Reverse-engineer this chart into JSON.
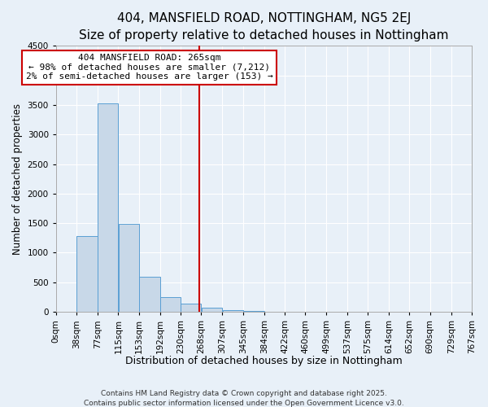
{
  "title": "404, MANSFIELD ROAD, NOTTINGHAM, NG5 2EJ",
  "subtitle": "Size of property relative to detached houses in Nottingham",
  "xlabel": "Distribution of detached houses by size in Nottingham",
  "ylabel": "Number of detached properties",
  "bin_edges": [
    0,
    38,
    77,
    115,
    153,
    192,
    230,
    268,
    307,
    345,
    384,
    422,
    460,
    499,
    537,
    575,
    614,
    652,
    690,
    729,
    767
  ],
  "bar_heights": [
    0,
    1280,
    3530,
    1490,
    600,
    245,
    145,
    75,
    30,
    10,
    5,
    0,
    0,
    0,
    0,
    0,
    0,
    0,
    0,
    0
  ],
  "bar_color": "#c8d8e8",
  "bar_edgecolor": "#5a9fd4",
  "vline_x": 265,
  "vline_color": "#cc0000",
  "annotation_text": "404 MANSFIELD ROAD: 265sqm\n← 98% of detached houses are smaller (7,212)\n2% of semi-detached houses are larger (153) →",
  "annotation_box_edgecolor": "#cc0000",
  "annotation_box_facecolor": "#ffffff",
  "ylim": [
    0,
    4500
  ],
  "yticks": [
    0,
    500,
    1000,
    1500,
    2000,
    2500,
    3000,
    3500,
    4000,
    4500
  ],
  "background_color": "#e8f0f8",
  "grid_color": "#ffffff",
  "footer_line1": "Contains HM Land Registry data © Crown copyright and database right 2025.",
  "footer_line2": "Contains public sector information licensed under the Open Government Licence v3.0.",
  "title_fontsize": 11,
  "subtitle_fontsize": 9.5,
  "xlabel_fontsize": 9,
  "ylabel_fontsize": 8.5,
  "tick_label_fontsize": 7.5,
  "annotation_fontsize": 8,
  "footer_fontsize": 6.5
}
